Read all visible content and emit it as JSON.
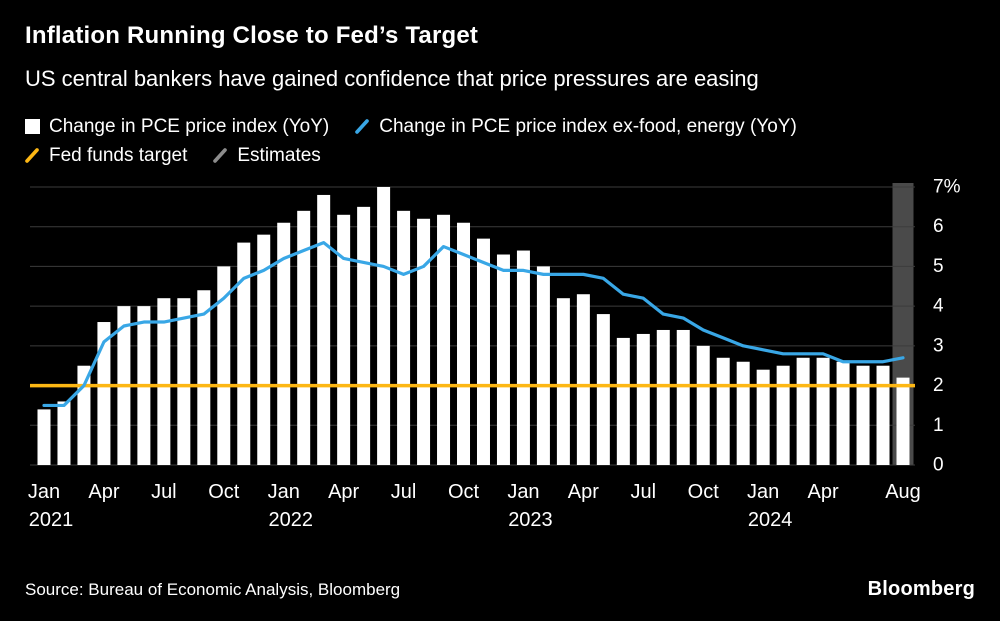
{
  "header": {
    "title": "Inflation Running Close to Fed’s Target",
    "subtitle": "US central bankers have gained confidence that price pressures are easing"
  },
  "legend": [
    {
      "marker": "square",
      "color": "#ffffff",
      "label": "Change in PCE price index (YoY)"
    },
    {
      "marker": "slash",
      "color": "#39a7e6",
      "label": "Change in PCE price index ex-food, energy (YoY)"
    },
    {
      "marker": "slash",
      "color": "#fdb714",
      "label": "Fed funds target"
    },
    {
      "marker": "slash",
      "color": "#8c8c8c",
      "label": "Estimates"
    }
  ],
  "footer": {
    "source": "Source: Bureau of Economic Analysis, Bloomberg",
    "brand": "Bloomberg"
  },
  "chart_data": {
    "type": "bar",
    "title": "Inflation Running Close to Fed’s Target",
    "xlabel": "",
    "ylabel": "",
    "ylim": [
      0,
      7
    ],
    "grid": true,
    "grid_color": "#3c3c3c",
    "background": "#000000",
    "legend_position": "top",
    "yticks": [
      {
        "value": 0,
        "label": "0"
      },
      {
        "value": 1,
        "label": "1"
      },
      {
        "value": 2,
        "label": "2"
      },
      {
        "value": 3,
        "label": "3"
      },
      {
        "value": 4,
        "label": "4"
      },
      {
        "value": 5,
        "label": "5"
      },
      {
        "value": 6,
        "label": "6"
      },
      {
        "value": 7,
        "label": "7%"
      }
    ],
    "xticks": [
      {
        "index": 0,
        "label": "Jan",
        "year": "2021"
      },
      {
        "index": 3,
        "label": "Apr"
      },
      {
        "index": 6,
        "label": "Jul"
      },
      {
        "index": 9,
        "label": "Oct"
      },
      {
        "index": 12,
        "label": "Jan",
        "year": "2022"
      },
      {
        "index": 15,
        "label": "Apr"
      },
      {
        "index": 18,
        "label": "Jul"
      },
      {
        "index": 21,
        "label": "Oct"
      },
      {
        "index": 24,
        "label": "Jan",
        "year": "2023"
      },
      {
        "index": 27,
        "label": "Apr"
      },
      {
        "index": 30,
        "label": "Jul"
      },
      {
        "index": 33,
        "label": "Oct"
      },
      {
        "index": 36,
        "label": "Jan",
        "year": "2024"
      },
      {
        "index": 39,
        "label": "Apr"
      },
      {
        "index": 43,
        "label": "Aug"
      }
    ],
    "x": [
      "Jan 2021",
      "Feb 2021",
      "Mar 2021",
      "Apr 2021",
      "May 2021",
      "Jun 2021",
      "Jul 2021",
      "Aug 2021",
      "Sep 2021",
      "Oct 2021",
      "Nov 2021",
      "Dec 2021",
      "Jan 2022",
      "Feb 2022",
      "Mar 2022",
      "Apr 2022",
      "May 2022",
      "Jun 2022",
      "Jul 2022",
      "Aug 2022",
      "Sep 2022",
      "Oct 2022",
      "Nov 2022",
      "Dec 2022",
      "Jan 2023",
      "Feb 2023",
      "Mar 2023",
      "Apr 2023",
      "May 2023",
      "Jun 2023",
      "Jul 2023",
      "Aug 2023",
      "Sep 2023",
      "Oct 2023",
      "Nov 2023",
      "Dec 2023",
      "Jan 2024",
      "Feb 2024",
      "Mar 2024",
      "Apr 2024",
      "May 2024",
      "Jun 2024",
      "Jul 2024",
      "Aug 2024"
    ],
    "series": [
      {
        "name": "Change in PCE price index (YoY)",
        "type": "bar",
        "color": "#ffffff",
        "values": [
          1.4,
          1.6,
          2.5,
          3.6,
          4.0,
          4.0,
          4.2,
          4.2,
          4.4,
          5.0,
          5.6,
          5.8,
          6.1,
          6.4,
          6.8,
          6.3,
          6.5,
          7.0,
          6.4,
          6.2,
          6.3,
          6.1,
          5.7,
          5.3,
          5.4,
          5.0,
          4.2,
          4.3,
          3.8,
          3.2,
          3.3,
          3.4,
          3.4,
          3.0,
          2.7,
          2.6,
          2.4,
          2.5,
          2.7,
          2.7,
          2.6,
          2.5,
          2.5,
          2.2
        ]
      },
      {
        "name": "Change in PCE price index ex-food, energy (YoY)",
        "type": "line",
        "color": "#39a7e6",
        "values": [
          1.5,
          1.5,
          2.0,
          3.1,
          3.5,
          3.6,
          3.6,
          3.7,
          3.8,
          4.2,
          4.7,
          4.9,
          5.2,
          5.4,
          5.6,
          5.2,
          5.1,
          5.0,
          4.8,
          5.0,
          5.5,
          5.3,
          5.1,
          4.9,
          4.9,
          4.8,
          4.8,
          4.8,
          4.7,
          4.3,
          4.2,
          3.8,
          3.7,
          3.4,
          3.2,
          3.0,
          2.9,
          2.8,
          2.8,
          2.8,
          2.6,
          2.6,
          2.6,
          2.7
        ]
      },
      {
        "name": "Fed funds target",
        "type": "line",
        "color": "#fdb714",
        "constant": 2
      }
    ],
    "estimates": {
      "label": "Estimates",
      "start_index": 43,
      "band_color": "#4a4a4a"
    }
  }
}
